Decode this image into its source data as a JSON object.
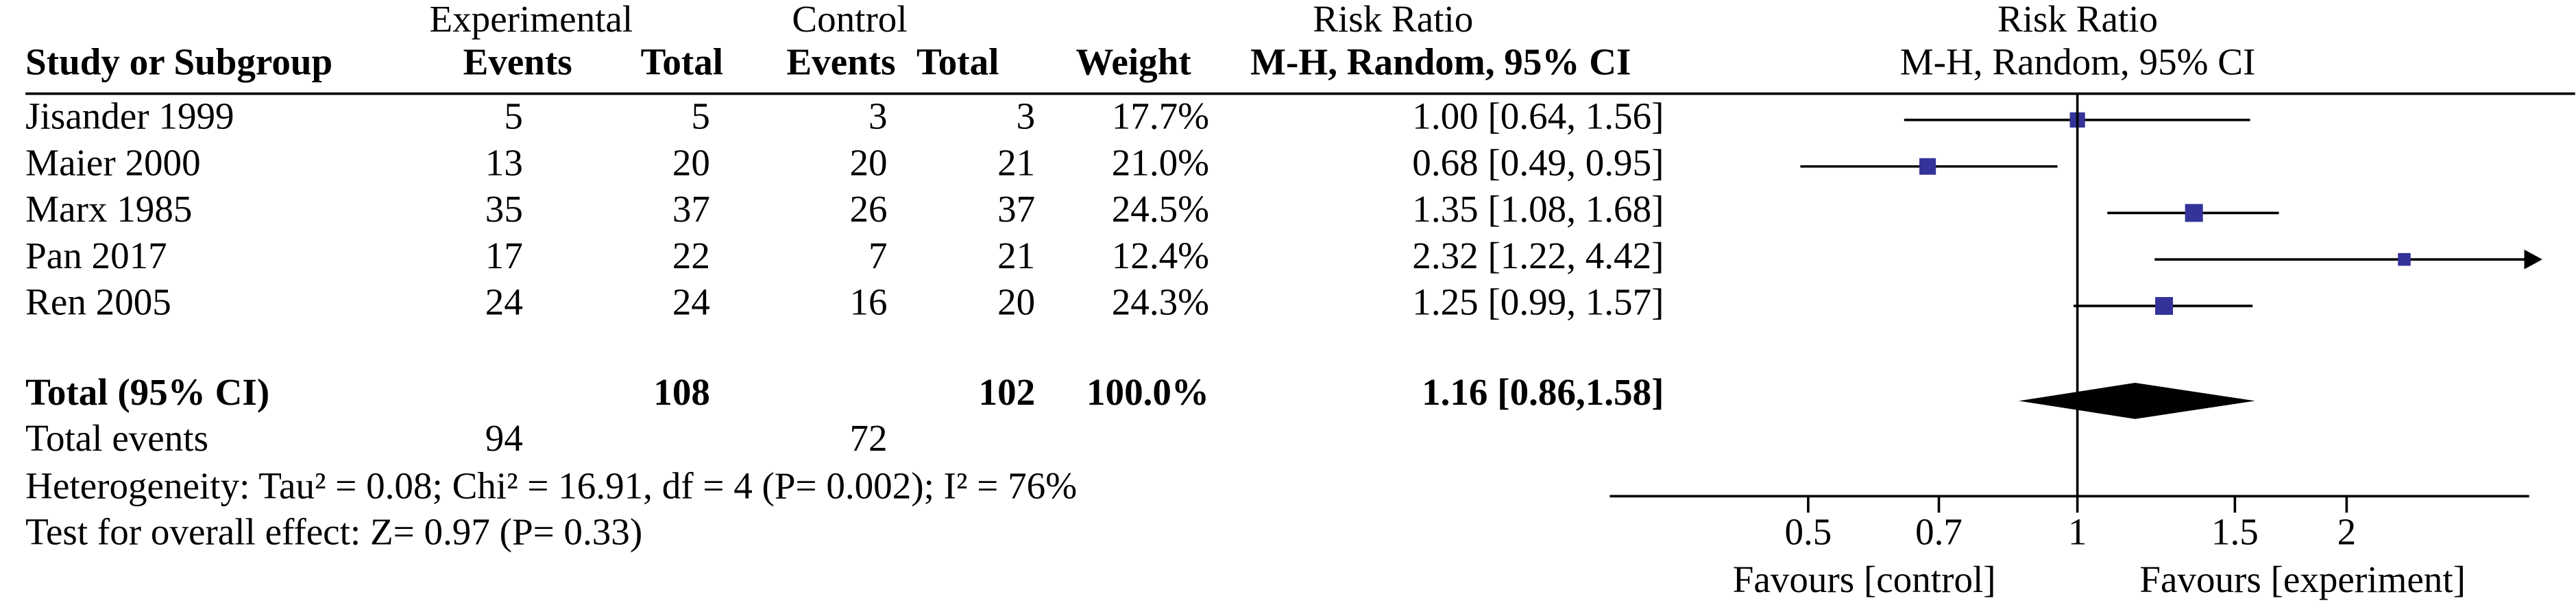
{
  "chart_data": {
    "type": "forest",
    "header": {
      "experimental": "Experimental",
      "control": "Control",
      "rr_table": "Risk Ratio",
      "rr_plot": "Risk Ratio",
      "study": "Study or Subgroup",
      "exp_events": "Events",
      "exp_total": "Total",
      "ctl_events": "Events",
      "ctl_total": "Total",
      "weight": "Weight",
      "method_table": "M-H, Random, 95% CI",
      "method_plot": "M-H, Random, 95% CI"
    },
    "studies": [
      {
        "name": "Jisander 1999",
        "exp_events": 5,
        "exp_total": 5,
        "ctl_events": 3,
        "ctl_total": 3,
        "weight": 17.7,
        "weight_label": "17.7%",
        "rr": 1.0,
        "lo": 0.64,
        "hi": 1.56,
        "ci_label": "1.00 [0.64, 1.56]"
      },
      {
        "name": "Maier 2000",
        "exp_events": 13,
        "exp_total": 20,
        "ctl_events": 20,
        "ctl_total": 21,
        "weight": 21.0,
        "weight_label": "21.0%",
        "rr": 0.68,
        "lo": 0.49,
        "hi": 0.95,
        "ci_label": "0.68 [0.49, 0.95]"
      },
      {
        "name": "Marx 1985",
        "exp_events": 35,
        "exp_total": 37,
        "ctl_events": 26,
        "ctl_total": 37,
        "weight": 24.5,
        "weight_label": "24.5%",
        "rr": 1.35,
        "lo": 1.08,
        "hi": 1.68,
        "ci_label": "1.35 [1.08, 1.68]"
      },
      {
        "name": "Pan 2017",
        "exp_events": 17,
        "exp_total": 22,
        "ctl_events": 7,
        "ctl_total": 21,
        "weight": 12.4,
        "weight_label": "12.4%",
        "rr": 2.32,
        "lo": 1.22,
        "hi": 4.42,
        "ci_label": "2.32 [1.22, 4.42]"
      },
      {
        "name": "Ren 2005",
        "exp_events": 24,
        "exp_total": 24,
        "ctl_events": 16,
        "ctl_total": 20,
        "weight": 24.3,
        "weight_label": "24.3%",
        "rr": 1.25,
        "lo": 0.99,
        "hi": 1.57,
        "ci_label": "1.25 [0.99, 1.57]"
      }
    ],
    "total": {
      "name": "Total (95% CI)",
      "exp_total": 108,
      "ctl_total": 102,
      "weight": 100.0,
      "weight_label": "100.0%",
      "rr": 1.16,
      "lo": 0.86,
      "hi": 1.58,
      "ci_label": "1.16 [0.86,1.58]"
    },
    "total_events": {
      "name": "Total events",
      "exp_events": 94,
      "ctl_events": 72
    },
    "heterogeneity": "Heterogeneity: Tau² = 0.08; Chi² = 16.91, df = 4 (P= 0.002); I² = 76%",
    "overall_effect": "Test for overall effect: Z= 0.97 (P= 0.33)",
    "x_log": true,
    "xlim": [
      0.3,
      3.2
    ],
    "xticks": [
      0.5,
      0.7,
      1,
      1.5,
      2
    ],
    "x_labels": [
      "Favours [control]",
      "Favours [experiment]"
    ],
    "marker_color": "#33339a",
    "diamond_color": "#000000"
  }
}
